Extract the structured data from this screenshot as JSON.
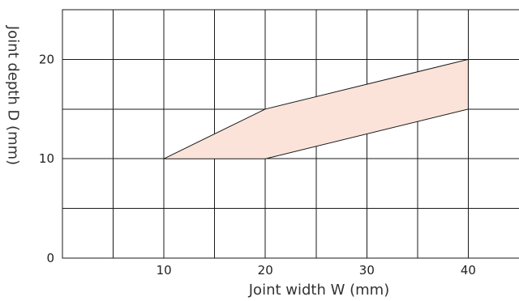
{
  "chart_data": {
    "type": "area",
    "title": "",
    "xlabel": "Joint width W (mm)",
    "ylabel": "Joint depth D (mm)",
    "xlim": [
      0,
      45
    ],
    "ylim": [
      0,
      25
    ],
    "x_ticks": [
      10,
      20,
      30,
      40
    ],
    "x_tick_labels": [
      "10",
      "20",
      "30",
      "40"
    ],
    "y_ticks": [
      0,
      10,
      20
    ],
    "y_tick_labels": [
      "0",
      "10",
      "20"
    ],
    "x_grid": [
      5,
      10,
      15,
      20,
      25,
      30,
      35,
      40
    ],
    "y_grid": [
      5,
      10,
      15,
      20
    ],
    "grid": true,
    "legend": "none",
    "fill_color": "#fbe3da",
    "line_color": "#1a1a1a",
    "region": {
      "upper": [
        {
          "x": 10,
          "y": 10
        },
        {
          "x": 20,
          "y": 15
        },
        {
          "x": 40,
          "y": 20
        }
      ],
      "lower": [
        {
          "x": 10,
          "y": 10
        },
        {
          "x": 20,
          "y": 10
        },
        {
          "x": 40,
          "y": 15
        }
      ]
    }
  }
}
